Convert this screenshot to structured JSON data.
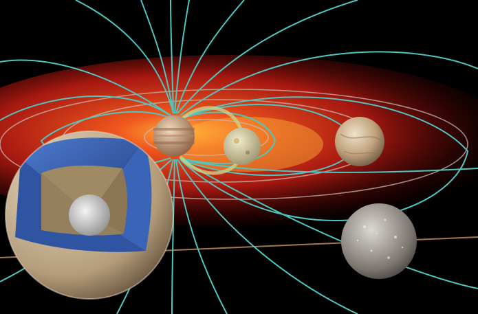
{
  "scene": {
    "subject": "jupiter-magnetosphere-with-moons",
    "colors": {
      "background": "#000000",
      "plasma_glow": "#d8261a",
      "plasma_core": "#ffb43a",
      "field_line": "#4fc6c0",
      "orbit_ring": "#c8b8b0",
      "flux_tube": "#c9d48a",
      "jupiter_band_light": "#e8d2b4",
      "jupiter_band_dark": "#9a6a4c",
      "ganymede_cutaway_blue": "#3a64b8",
      "ganymede_rock": "#a08a64",
      "ganymede_core": "#d0d0d0",
      "ganymede_surface": "#c8b494"
    },
    "icons": [
      "jupiter-icon",
      "io-icon",
      "europa-icon",
      "callisto-icon",
      "ganymede-cutaway-icon"
    ]
  }
}
